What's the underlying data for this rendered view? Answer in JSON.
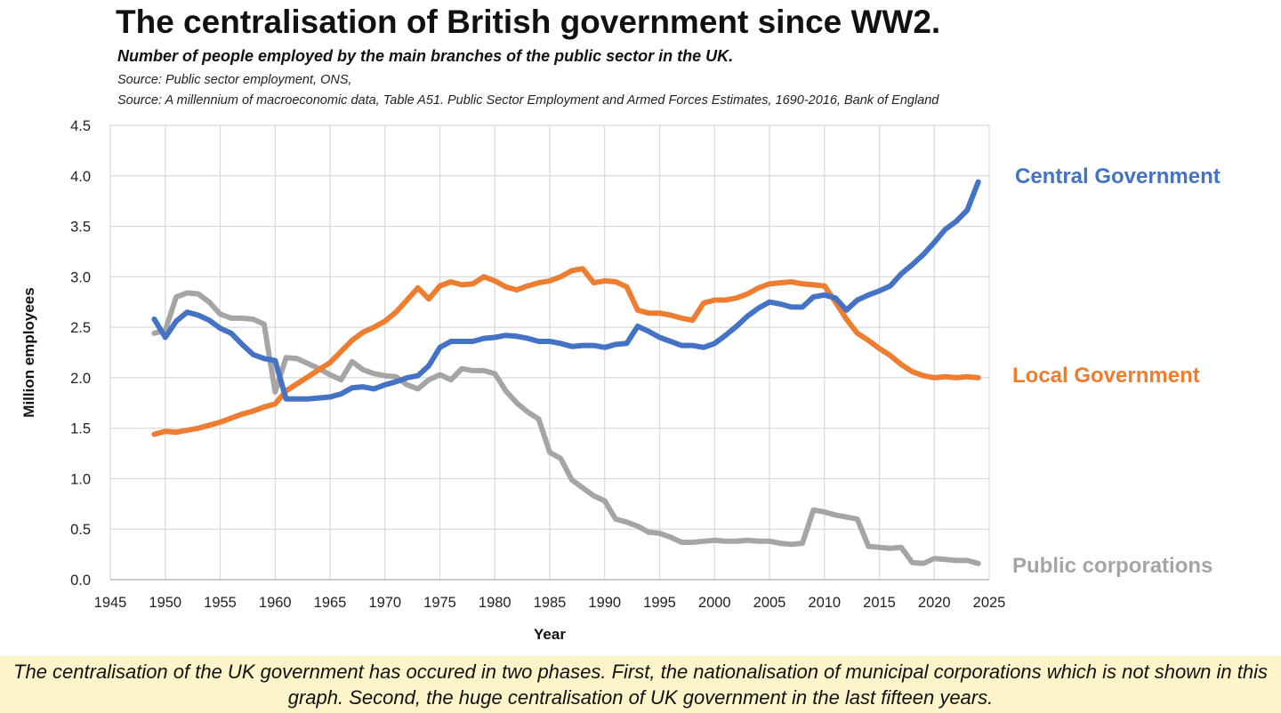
{
  "header": {
    "title": "The centralisation of British government since WW2.",
    "subtitle": "Number of people employed by the main branches of the public sector in the UK.",
    "source1": "Source: Public sector employment, ONS,",
    "source2": "Source: A millennium of macroeconomic data, Table A51. Public Sector Employment and Armed Forces Estimates, 1690-2016, Bank of England"
  },
  "caption": "The centralisation of the UK government has occured in two phases. First, the nationalisation of municipal corporations which is not shown in this graph. Second, the huge centralisation of UK government in the last fifteen years.",
  "chart_data": {
    "type": "line",
    "title": "The centralisation of British government since WW2.",
    "xlabel": "Year",
    "ylabel": "Million employees",
    "xlim": [
      1945,
      2025
    ],
    "ylim": [
      0,
      4.5
    ],
    "x_ticks": [
      "1945",
      "1950",
      "1955",
      "1960",
      "1965",
      "1970",
      "1975",
      "1980",
      "1985",
      "1990",
      "1995",
      "2000",
      "2005",
      "2010",
      "2015",
      "2020",
      "2025"
    ],
    "y_ticks": [
      "0.0",
      "0.5",
      "1.0",
      "1.5",
      "2.0",
      "2.5",
      "3.0",
      "3.5",
      "4.0",
      "4.5"
    ],
    "grid": true,
    "legend": "direct labels at line ends (right)",
    "series": [
      {
        "name": "Central Government",
        "color": "#4472c4",
        "x": [
          1949,
          1950,
          1951,
          1952,
          1953,
          1954,
          1955,
          1956,
          1957,
          1958,
          1959,
          1960,
          1961,
          1962,
          1963,
          1964,
          1965,
          1966,
          1967,
          1968,
          1969,
          1970,
          1971,
          1972,
          1973,
          1974,
          1975,
          1976,
          1977,
          1978,
          1979,
          1980,
          1981,
          1982,
          1983,
          1984,
          1985,
          1986,
          1987,
          1988,
          1989,
          1990,
          1991,
          1992,
          1993,
          1994,
          1995,
          1996,
          1997,
          1998,
          1999,
          2000,
          2001,
          2002,
          2003,
          2004,
          2005,
          2006,
          2007,
          2008,
          2009,
          2010,
          2011,
          2012,
          2013,
          2014,
          2015,
          2016,
          2017,
          2018,
          2019,
          2020,
          2021,
          2022,
          2023,
          2024
        ],
        "values": [
          2.58,
          2.4,
          2.56,
          2.65,
          2.62,
          2.57,
          2.49,
          2.44,
          2.33,
          2.23,
          2.19,
          2.17,
          1.79,
          1.79,
          1.79,
          1.8,
          1.81,
          1.84,
          1.9,
          1.91,
          1.89,
          1.93,
          1.96,
          2.0,
          2.02,
          2.12,
          2.3,
          2.36,
          2.36,
          2.36,
          2.39,
          2.4,
          2.42,
          2.41,
          2.39,
          2.36,
          2.36,
          2.34,
          2.31,
          2.32,
          2.32,
          2.3,
          2.33,
          2.34,
          2.51,
          2.46,
          2.4,
          2.36,
          2.32,
          2.32,
          2.3,
          2.34,
          2.42,
          2.51,
          2.61,
          2.69,
          2.75,
          2.73,
          2.7,
          2.7,
          2.8,
          2.82,
          2.79,
          2.67,
          2.77,
          2.82,
          2.86,
          2.91,
          3.03,
          3.12,
          3.22,
          3.34,
          3.47,
          3.55,
          3.66,
          3.94
        ]
      },
      {
        "name": "Local Government",
        "color": "#ed7d31",
        "x": [
          1949,
          1950,
          1951,
          1952,
          1953,
          1954,
          1955,
          1956,
          1957,
          1958,
          1959,
          1960,
          1961,
          1962,
          1963,
          1964,
          1965,
          1966,
          1967,
          1968,
          1969,
          1970,
          1971,
          1972,
          1973,
          1974,
          1975,
          1976,
          1977,
          1978,
          1979,
          1980,
          1981,
          1982,
          1983,
          1984,
          1985,
          1986,
          1987,
          1988,
          1989,
          1990,
          1991,
          1992,
          1993,
          1994,
          1995,
          1996,
          1997,
          1998,
          1999,
          2000,
          2001,
          2002,
          2003,
          2004,
          2005,
          2006,
          2007,
          2008,
          2009,
          2010,
          2011,
          2012,
          2013,
          2014,
          2015,
          2016,
          2017,
          2018,
          2019,
          2020,
          2021,
          2022,
          2023,
          2024
        ],
        "values": [
          1.44,
          1.47,
          1.46,
          1.48,
          1.5,
          1.53,
          1.56,
          1.6,
          1.64,
          1.67,
          1.71,
          1.74,
          1.87,
          1.94,
          2.01,
          2.08,
          2.15,
          2.26,
          2.37,
          2.45,
          2.5,
          2.56,
          2.65,
          2.77,
          2.89,
          2.78,
          2.91,
          2.95,
          2.92,
          2.93,
          3.0,
          2.96,
          2.9,
          2.87,
          2.91,
          2.94,
          2.96,
          3.0,
          3.06,
          3.08,
          2.94,
          2.96,
          2.95,
          2.9,
          2.67,
          2.64,
          2.64,
          2.62,
          2.59,
          2.57,
          2.74,
          2.77,
          2.77,
          2.79,
          2.83,
          2.89,
          2.93,
          2.94,
          2.95,
          2.93,
          2.92,
          2.91,
          2.75,
          2.58,
          2.44,
          2.37,
          2.29,
          2.22,
          2.13,
          2.06,
          2.02,
          2.0,
          2.01,
          2.0,
          2.01,
          2.0
        ]
      },
      {
        "name": "Public corporations",
        "color": "#a5a5a5",
        "x": [
          1949,
          1950,
          1951,
          1952,
          1953,
          1954,
          1955,
          1956,
          1957,
          1958,
          1959,
          1960,
          1961,
          1962,
          1963,
          1964,
          1965,
          1966,
          1967,
          1968,
          1969,
          1970,
          1971,
          1972,
          1973,
          1974,
          1975,
          1976,
          1977,
          1978,
          1979,
          1980,
          1981,
          1982,
          1983,
          1984,
          1985,
          1986,
          1987,
          1988,
          1989,
          1990,
          1991,
          1992,
          1993,
          1994,
          1995,
          1996,
          1997,
          1998,
          1999,
          2000,
          2001,
          2002,
          2003,
          2004,
          2005,
          2006,
          2007,
          2008,
          2009,
          2010,
          2011,
          2012,
          2013,
          2014,
          2015,
          2016,
          2017,
          2018,
          2019,
          2020,
          2021,
          2022,
          2023,
          2024
        ],
        "values": [
          2.44,
          2.47,
          2.8,
          2.84,
          2.83,
          2.75,
          2.63,
          2.59,
          2.59,
          2.58,
          2.53,
          1.86,
          2.2,
          2.19,
          2.14,
          2.09,
          2.03,
          1.98,
          2.16,
          2.08,
          2.04,
          2.02,
          2.01,
          1.93,
          1.89,
          1.98,
          2.03,
          1.98,
          2.09,
          2.07,
          2.07,
          2.04,
          1.87,
          1.75,
          1.66,
          1.59,
          1.26,
          1.2,
          0.99,
          0.91,
          0.83,
          0.78,
          0.6,
          0.57,
          0.53,
          0.47,
          0.46,
          0.42,
          0.37,
          0.37,
          0.38,
          0.39,
          0.38,
          0.38,
          0.39,
          0.38,
          0.38,
          0.36,
          0.35,
          0.36,
          0.69,
          0.67,
          0.64,
          0.62,
          0.6,
          0.33,
          0.32,
          0.31,
          0.32,
          0.17,
          0.16,
          0.21,
          0.2,
          0.19,
          0.19,
          0.16
        ]
      }
    ]
  }
}
